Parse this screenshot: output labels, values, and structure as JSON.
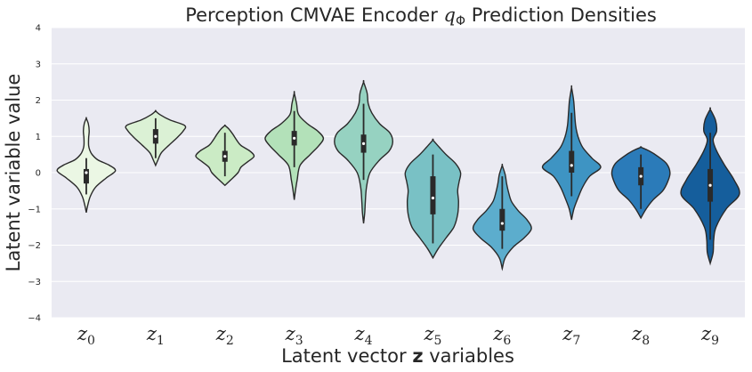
{
  "chart_data": {
    "type": "violin",
    "title": "Perception CMVAE Encoder q_Φ Prediction Densities",
    "title_parts": [
      "Perception CMVAE Encoder ",
      "q",
      "Φ",
      " Prediction Densities"
    ],
    "xlabel": "Latent vector z variables",
    "xlabel_parts": [
      "Latent vector ",
      "z",
      " variables"
    ],
    "ylabel": "Latent variable value",
    "ylim": [
      -4,
      4
    ],
    "yticks": [
      -4,
      -3,
      -2,
      -1,
      0,
      1,
      2,
      3,
      4
    ],
    "ytick_labels": [
      "−4",
      "−3",
      "−2",
      "−1",
      "0",
      "1",
      "2",
      "3",
      "4"
    ],
    "grid": true,
    "background": "#eaeaf2",
    "outline_color": "#2a2a2a",
    "categories": [
      "z0",
      "z1",
      "z2",
      "z3",
      "z4",
      "z5",
      "z6",
      "z7",
      "z8",
      "z9"
    ],
    "category_parts": [
      {
        "base": "z",
        "sub": "0"
      },
      {
        "base": "z",
        "sub": "1"
      },
      {
        "base": "z",
        "sub": "2"
      },
      {
        "base": "z",
        "sub": "3"
      },
      {
        "base": "z",
        "sub": "4"
      },
      {
        "base": "z",
        "sub": "5"
      },
      {
        "base": "z",
        "sub": "6"
      },
      {
        "base": "z",
        "sub": "7"
      },
      {
        "base": "z",
        "sub": "8"
      },
      {
        "base": "z",
        "sub": "9"
      }
    ],
    "series": [
      {
        "category": "z0",
        "color": "#ebf7e4",
        "min": -1.1,
        "max": 1.5,
        "q1": -0.3,
        "median": 0.0,
        "q3": 0.1,
        "whisker_low": -0.6,
        "whisker_high": 0.4,
        "density": [
          [
            -1.1,
            0.0
          ],
          [
            -0.9,
            0.05
          ],
          [
            -0.65,
            0.14
          ],
          [
            -0.4,
            0.32
          ],
          [
            -0.15,
            0.68
          ],
          [
            0.05,
            1.0
          ],
          [
            0.2,
            0.8
          ],
          [
            0.35,
            0.4
          ],
          [
            0.5,
            0.2
          ],
          [
            0.62,
            0.12
          ],
          [
            0.75,
            0.08
          ],
          [
            0.95,
            0.08
          ],
          [
            1.15,
            0.1
          ],
          [
            1.35,
            0.07
          ],
          [
            1.5,
            0.0
          ]
        ]
      },
      {
        "category": "z1",
        "color": "#dbf1d5",
        "min": 0.2,
        "max": 1.7,
        "q1": 0.8,
        "median": 1.0,
        "q3": 1.2,
        "whisker_low": 0.4,
        "whisker_high": 1.5,
        "density": [
          [
            0.2,
            0.0
          ],
          [
            0.35,
            0.08
          ],
          [
            0.55,
            0.2
          ],
          [
            0.75,
            0.45
          ],
          [
            0.95,
            0.72
          ],
          [
            1.15,
            0.95
          ],
          [
            1.3,
            1.0
          ],
          [
            1.45,
            0.5
          ],
          [
            1.6,
            0.15
          ],
          [
            1.7,
            0.0
          ]
        ]
      },
      {
        "category": "z2",
        "color": "#cbebc5",
        "min": -0.35,
        "max": 1.3,
        "q1": 0.3,
        "median": 0.45,
        "q3": 0.6,
        "whisker_low": -0.1,
        "whisker_high": 1.1,
        "density": [
          [
            -0.35,
            0.0
          ],
          [
            -0.2,
            0.2
          ],
          [
            0.0,
            0.45
          ],
          [
            0.15,
            0.55
          ],
          [
            0.3,
            0.78
          ],
          [
            0.45,
            1.0
          ],
          [
            0.6,
            0.85
          ],
          [
            0.75,
            0.55
          ],
          [
            0.9,
            0.4
          ],
          [
            1.05,
            0.28
          ],
          [
            1.2,
            0.14
          ],
          [
            1.3,
            0.0
          ]
        ]
      },
      {
        "category": "z3",
        "color": "#b3e1b9",
        "min": -0.75,
        "max": 2.2,
        "q1": 0.75,
        "median": 0.95,
        "q3": 1.15,
        "whisker_low": 0.15,
        "whisker_high": 1.7,
        "density": [
          [
            -0.75,
            0.0
          ],
          [
            -0.5,
            0.04
          ],
          [
            -0.2,
            0.1
          ],
          [
            0.2,
            0.2
          ],
          [
            0.5,
            0.55
          ],
          [
            0.75,
            0.85
          ],
          [
            0.95,
            1.0
          ],
          [
            1.15,
            0.8
          ],
          [
            1.35,
            0.45
          ],
          [
            1.6,
            0.15
          ],
          [
            1.9,
            0.08
          ],
          [
            2.2,
            0.0
          ]
        ]
      },
      {
        "category": "z4",
        "color": "#96d2c1",
        "min": -1.4,
        "max": 2.5,
        "q1": 0.55,
        "median": 0.8,
        "q3": 1.05,
        "whisker_low": -0.2,
        "whisker_high": 1.9,
        "density": [
          [
            -1.4,
            0.0
          ],
          [
            -1.1,
            0.04
          ],
          [
            -0.8,
            0.06
          ],
          [
            -0.4,
            0.1
          ],
          [
            0.0,
            0.22
          ],
          [
            0.35,
            0.55
          ],
          [
            0.6,
            0.88
          ],
          [
            0.85,
            1.0
          ],
          [
            1.1,
            0.9
          ],
          [
            1.35,
            0.55
          ],
          [
            1.65,
            0.28
          ],
          [
            1.9,
            0.16
          ],
          [
            2.2,
            0.12
          ],
          [
            2.5,
            0.0
          ]
        ]
      },
      {
        "category": "z5",
        "color": "#79c1c5",
        "min": -2.35,
        "max": 0.9,
        "q1": -1.15,
        "median": -0.7,
        "q3": -0.1,
        "whisker_low": -1.95,
        "whisker_high": 0.5,
        "density": [
          [
            -2.35,
            0.0
          ],
          [
            -2.1,
            0.18
          ],
          [
            -1.8,
            0.45
          ],
          [
            -1.5,
            0.72
          ],
          [
            -1.15,
            0.85
          ],
          [
            -0.8,
            0.88
          ],
          [
            -0.5,
            0.85
          ],
          [
            -0.25,
            0.9
          ],
          [
            0.0,
            0.95
          ],
          [
            0.25,
            0.78
          ],
          [
            0.5,
            0.45
          ],
          [
            0.7,
            0.22
          ],
          [
            0.9,
            0.0
          ]
        ]
      },
      {
        "category": "z6",
        "color": "#5cadcd",
        "min": -2.65,
        "max": 0.2,
        "q1": -1.6,
        "median": -1.4,
        "q3": -1.0,
        "whisker_low": -2.1,
        "whisker_high": -0.1,
        "density": [
          [
            -2.65,
            0.0
          ],
          [
            -2.35,
            0.1
          ],
          [
            -2.05,
            0.38
          ],
          [
            -1.8,
            0.75
          ],
          [
            -1.55,
            1.0
          ],
          [
            -1.3,
            0.85
          ],
          [
            -1.05,
            0.55
          ],
          [
            -0.8,
            0.32
          ],
          [
            -0.55,
            0.22
          ],
          [
            -0.3,
            0.15
          ],
          [
            -0.05,
            0.1
          ],
          [
            0.2,
            0.0
          ]
        ]
      },
      {
        "category": "z7",
        "color": "#3e94c3",
        "min": -1.3,
        "max": 2.35,
        "q1": 0.0,
        "median": 0.2,
        "q3": 0.6,
        "whisker_low": -0.65,
        "whisker_high": 1.65,
        "density": [
          [
            -1.3,
            0.0
          ],
          [
            -1.0,
            0.08
          ],
          [
            -0.7,
            0.22
          ],
          [
            -0.4,
            0.38
          ],
          [
            -0.1,
            0.62
          ],
          [
            0.15,
            1.0
          ],
          [
            0.4,
            0.7
          ],
          [
            0.7,
            0.38
          ],
          [
            1.0,
            0.22
          ],
          [
            1.3,
            0.14
          ],
          [
            1.7,
            0.1
          ],
          [
            2.0,
            0.07
          ],
          [
            2.35,
            0.0
          ]
        ]
      },
      {
        "category": "z8",
        "color": "#2b7bb9",
        "min": -1.25,
        "max": 0.7,
        "q1": -0.35,
        "median": -0.1,
        "q3": 0.15,
        "whisker_low": -1.0,
        "whisker_high": 0.5,
        "density": [
          [
            -1.25,
            0.0
          ],
          [
            -1.0,
            0.18
          ],
          [
            -0.75,
            0.42
          ],
          [
            -0.5,
            0.75
          ],
          [
            -0.25,
            0.92
          ],
          [
            0.0,
            1.0
          ],
          [
            0.25,
            0.88
          ],
          [
            0.45,
            0.58
          ],
          [
            0.6,
            0.28
          ],
          [
            0.7,
            0.0
          ]
        ]
      },
      {
        "category": "z9",
        "color": "#155e9c",
        "min": -2.5,
        "max": 1.75,
        "q1": -0.8,
        "median": -0.35,
        "q3": 0.1,
        "whisker_low": -1.85,
        "whisker_high": 1.1,
        "density": [
          [
            -2.5,
            0.0
          ],
          [
            -2.2,
            0.1
          ],
          [
            -1.85,
            0.12
          ],
          [
            -1.5,
            0.2
          ],
          [
            -1.0,
            0.55
          ],
          [
            -0.6,
            1.0
          ],
          [
            -0.2,
            0.82
          ],
          [
            0.2,
            0.5
          ],
          [
            0.6,
            0.22
          ],
          [
            0.9,
            0.1
          ],
          [
            1.15,
            0.22
          ],
          [
            1.45,
            0.18
          ],
          [
            1.75,
            0.0
          ]
        ]
      }
    ]
  }
}
